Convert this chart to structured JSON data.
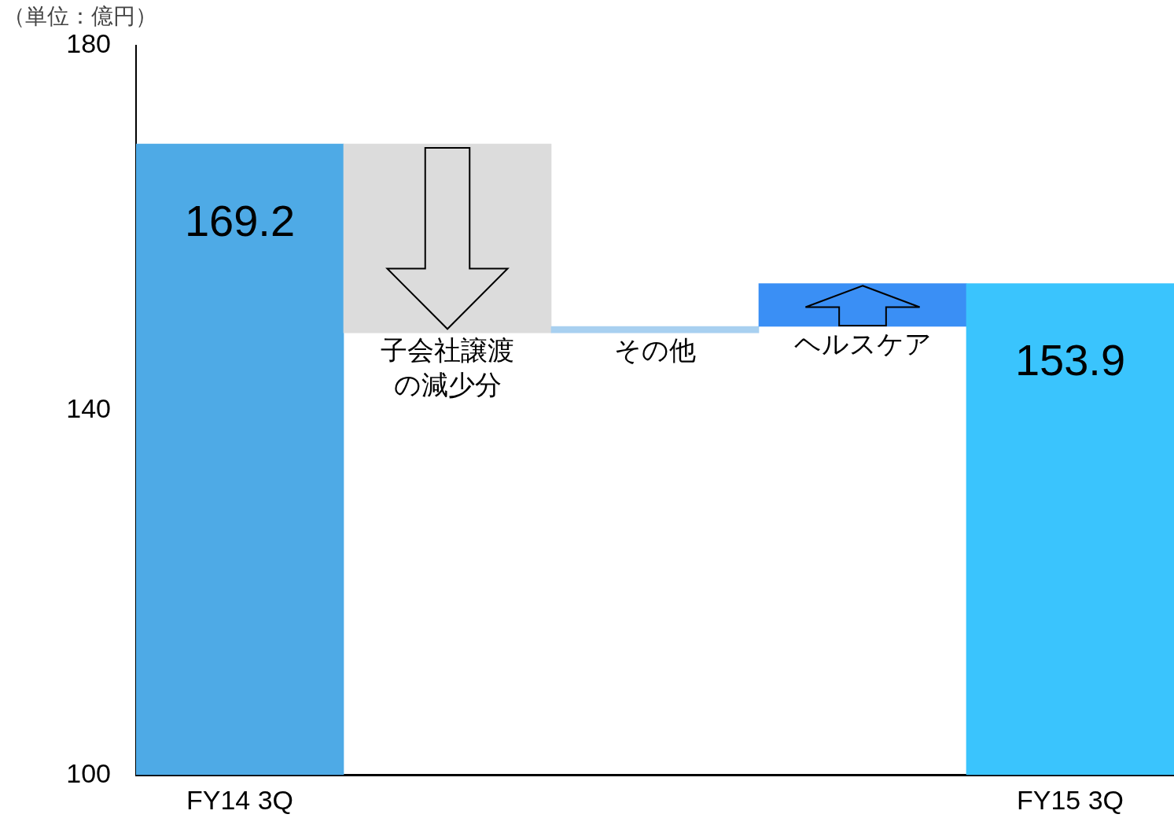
{
  "chart_data": {
    "type": "bar",
    "ylabel": "（単位：億円）",
    "categories": [
      "FY14 3Q",
      "子会社譲渡の減少分",
      "その他",
      "ヘルスケア",
      "FY15 3Q"
    ],
    "values": [
      169.2,
      -20.7,
      0.7,
      4.7,
      153.9
    ],
    "base": [
      null,
      169.2,
      148.5,
      149.2,
      null
    ],
    "colors": [
      "#4eaae6",
      "#dcdcdc",
      "#a8d0f0",
      "#3a8ff5",
      "#3ac4fd"
    ],
    "value_labels": [
      "169.2",
      null,
      null,
      null,
      "153.9"
    ],
    "ylim": [
      100,
      180
    ],
    "yticks": [
      100,
      140,
      180
    ],
    "grid": false,
    "legend": false
  }
}
